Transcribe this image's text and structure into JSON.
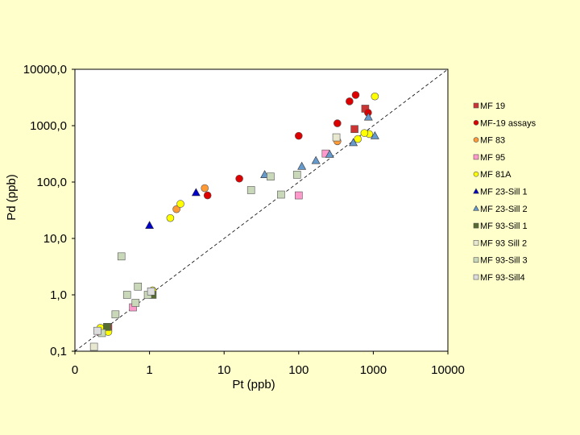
{
  "chart_data": {
    "type": "scatter",
    "title": "",
    "xlabel": "Pt (ppb)",
    "ylabel": "Pd (ppb)",
    "x_scale": "log",
    "y_scale": "log",
    "xlim": [
      0.1,
      10000
    ],
    "ylim": [
      0.1,
      10000
    ],
    "x_tick_values": [
      0.1,
      1,
      10,
      100,
      1000,
      10000
    ],
    "x_tick_labels": [
      "0",
      "1",
      "10",
      "100",
      "1000",
      "10000"
    ],
    "y_tick_values": [
      0.1,
      1,
      10,
      100,
      1000,
      10000
    ],
    "y_tick_labels": [
      "0,1",
      "1,0",
      "10,0",
      "100,0",
      "1000,0",
      "10000,0"
    ],
    "reference_line": {
      "style": "dashed",
      "x": [
        0.1,
        10000
      ],
      "y": [
        0.1,
        10000
      ]
    },
    "legend_position": "right",
    "series": [
      {
        "name": "MF 19",
        "marker": "square",
        "color": "#cc3333",
        "points": [
          [
            780,
            2000
          ],
          [
            560,
            870
          ],
          [
            0.28,
            0.26
          ]
        ]
      },
      {
        "name": "MF-19 assays",
        "marker": "circle",
        "color": "#dd0000",
        "points": [
          [
            580,
            3500
          ],
          [
            480,
            2700
          ],
          [
            850,
            1700
          ],
          [
            330,
            1100
          ],
          [
            100,
            660
          ],
          [
            16,
            115
          ],
          [
            6,
            58
          ]
        ]
      },
      {
        "name": "MF 83",
        "marker": "circle",
        "color": "#ff9933",
        "points": [
          [
            330,
            530
          ],
          [
            5.5,
            78
          ],
          [
            2.3,
            33
          ],
          [
            0.27,
            0.23
          ]
        ]
      },
      {
        "name": "MF 95",
        "marker": "square",
        "color": "#ff99cc",
        "points": [
          [
            100,
            58
          ],
          [
            230,
            320
          ],
          [
            0.6,
            0.6
          ],
          [
            0.22,
            0.22
          ]
        ]
      },
      {
        "name": "MF 81A",
        "marker": "circle",
        "color": "#ffff00",
        "points": [
          [
            1050,
            3300
          ],
          [
            880,
            710
          ],
          [
            760,
            740
          ],
          [
            620,
            580
          ],
          [
            2.6,
            41
          ],
          [
            1.9,
            23
          ],
          [
            1.1,
            1.2
          ],
          [
            0.28,
            0.22
          ],
          [
            0.22,
            0.26
          ]
        ]
      },
      {
        "name": "MF 23-Sill 1",
        "marker": "triangle",
        "color": "#0000cc",
        "points": [
          [
            4.2,
            65
          ],
          [
            1.0,
            17
          ]
        ]
      },
      {
        "name": "MF 23-Sill 2",
        "marker": "triangle",
        "color": "#6699cc",
        "points": [
          [
            860,
            1420
          ],
          [
            1050,
            660
          ],
          [
            540,
            500
          ],
          [
            260,
            310
          ],
          [
            170,
            240
          ],
          [
            110,
            190
          ],
          [
            35,
            135
          ]
        ]
      },
      {
        "name": "MF 93-Sill 1",
        "marker": "square",
        "color": "#556b2f",
        "points": [
          [
            1.1,
            1.0
          ],
          [
            0.27,
            0.27
          ]
        ]
      },
      {
        "name": "MF 93 Sill 2",
        "marker": "square",
        "color": "#e8e8d0",
        "points": [
          [
            320,
            620
          ],
          [
            0.18,
            0.12
          ]
        ]
      },
      {
        "name": "MF 93-Sill 3",
        "marker": "square",
        "color": "#c8d8b8",
        "points": [
          [
            95,
            135
          ],
          [
            42,
            125
          ],
          [
            23,
            72
          ],
          [
            58,
            60
          ],
          [
            0.42,
            4.8
          ],
          [
            0.7,
            1.4
          ],
          [
            0.5,
            1.0
          ],
          [
            0.95,
            1.0
          ],
          [
            0.35,
            0.45
          ],
          [
            0.65,
            0.72
          ],
          [
            0.23,
            0.21
          ]
        ]
      },
      {
        "name": "MF 93-Sill4",
        "marker": "square",
        "color": "#dddddd",
        "points": [
          [
            1.05,
            1.15
          ],
          [
            0.2,
            0.23
          ]
        ]
      }
    ]
  }
}
